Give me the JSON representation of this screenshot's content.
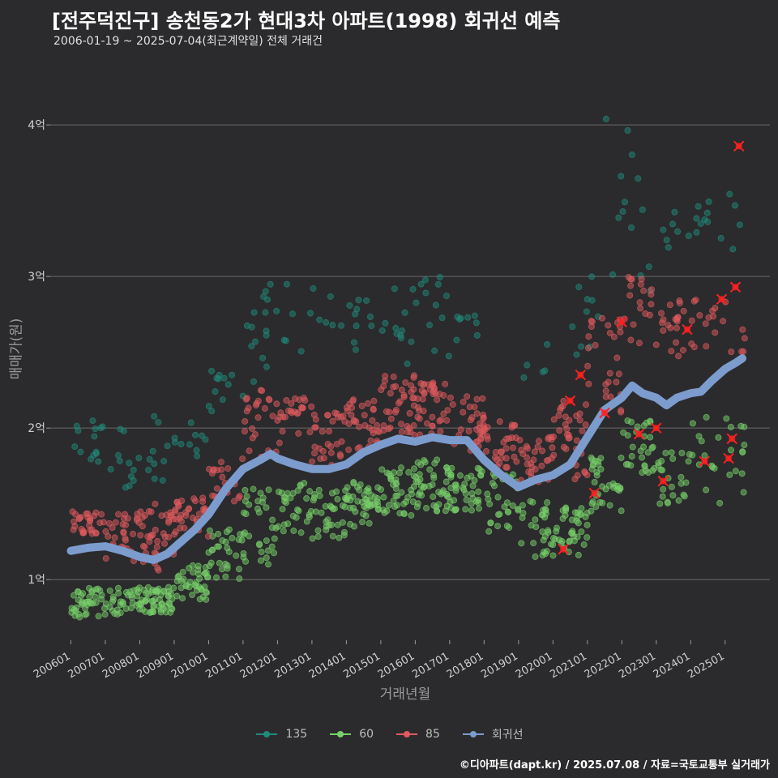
{
  "header": {
    "title": "[전주덕진구] 송천동2가 현대3차 아파트(1998) 회귀선 예측",
    "subtitle": "2006-01-19 ~ 2025-07-04(최근계약일) 전체 거래건"
  },
  "footer": {
    "credit": "©디아파트(dapt.kr) / 2025.07.08 / 자료=국토교통부 실거래가"
  },
  "chart_data": {
    "type": "scatter",
    "xlabel": "거래년월",
    "ylabel": "매매가(원)",
    "x_ticks": [
      "200601",
      "200701",
      "200801",
      "200901",
      "201001",
      "201101",
      "201201",
      "201301",
      "201401",
      "201501",
      "201601",
      "201701",
      "201801",
      "201901",
      "202001",
      "202101",
      "202201",
      "202301",
      "202401",
      "202501"
    ],
    "y_ticks": [
      {
        "value": 1,
        "label": "1억"
      },
      {
        "value": 2,
        "label": "2억"
      },
      {
        "value": 3,
        "label": "3억"
      },
      {
        "value": 4,
        "label": "4억"
      }
    ],
    "ylim": [
      0.6,
      4.45
    ],
    "xlim": [
      2005.4,
      2026.3
    ],
    "unit": "억원",
    "grid": "horizontal",
    "legend_position": "bottom",
    "colors": {
      "135": "#1f8a7a",
      "60": "#77d06a",
      "85": "#e05a5e",
      "회귀선": "#7c9cce"
    },
    "series": [
      {
        "name": "135",
        "color": "#1f8a7a",
        "bands": [
          {
            "x0": 2006.0,
            "x1": 2007.0,
            "lo": 1.7,
            "hi": 2.05,
            "n": 14
          },
          {
            "x0": 2007.0,
            "x1": 2008.0,
            "lo": 1.55,
            "hi": 2.05,
            "n": 12
          },
          {
            "x0": 2008.0,
            "x1": 2009.0,
            "lo": 1.65,
            "hi": 2.1,
            "n": 10
          },
          {
            "x0": 2009.0,
            "x1": 2010.0,
            "lo": 1.7,
            "hi": 2.05,
            "n": 10
          },
          {
            "x0": 2010.0,
            "x1": 2011.0,
            "lo": 2.0,
            "hi": 2.4,
            "n": 12
          },
          {
            "x0": 2011.0,
            "x1": 2012.0,
            "lo": 2.3,
            "hi": 2.95,
            "n": 16
          },
          {
            "x0": 2012.0,
            "x1": 2014.0,
            "lo": 2.5,
            "hi": 3.0,
            "n": 12
          },
          {
            "x0": 2014.0,
            "x1": 2015.0,
            "lo": 2.45,
            "hi": 2.85,
            "n": 10
          },
          {
            "x0": 2015.0,
            "x1": 2016.0,
            "lo": 2.4,
            "hi": 2.95,
            "n": 12
          },
          {
            "x0": 2016.0,
            "x1": 2017.0,
            "lo": 2.45,
            "hi": 3.0,
            "n": 12
          },
          {
            "x0": 2017.0,
            "x1": 2018.0,
            "lo": 2.55,
            "hi": 2.75,
            "n": 8
          },
          {
            "x0": 2019.0,
            "x1": 2020.0,
            "lo": 2.3,
            "hi": 2.6,
            "n": 5
          },
          {
            "x0": 2020.5,
            "x1": 2021.5,
            "lo": 2.45,
            "hi": 3.05,
            "n": 10
          },
          {
            "x0": 2021.5,
            "x1": 2022.5,
            "lo": 2.7,
            "hi": 4.05,
            "n": 10
          },
          {
            "x0": 2022.5,
            "x1": 2023.5,
            "lo": 2.9,
            "hi": 3.45,
            "n": 8
          },
          {
            "x0": 2023.5,
            "x1": 2024.5,
            "lo": 3.25,
            "hi": 3.5,
            "n": 10
          },
          {
            "x0": 2024.5,
            "x1": 2025.5,
            "lo": 3.15,
            "hi": 3.55,
            "n": 6
          }
        ]
      },
      {
        "name": "60",
        "color": "#77d06a",
        "bands": [
          {
            "x0": 2006.0,
            "x1": 2007.5,
            "lo": 0.75,
            "hi": 0.95,
            "n": 55
          },
          {
            "x0": 2007.5,
            "x1": 2009.0,
            "lo": 0.78,
            "hi": 0.95,
            "n": 70
          },
          {
            "x0": 2009.0,
            "x1": 2010.0,
            "lo": 0.85,
            "hi": 1.1,
            "n": 40
          },
          {
            "x0": 2010.0,
            "x1": 2011.0,
            "lo": 1.0,
            "hi": 1.35,
            "n": 30
          },
          {
            "x0": 2011.0,
            "x1": 2012.0,
            "lo": 1.1,
            "hi": 1.65,
            "n": 35
          },
          {
            "x0": 2012.0,
            "x1": 2013.0,
            "lo": 1.3,
            "hi": 1.65,
            "n": 30
          },
          {
            "x0": 2013.0,
            "x1": 2014.0,
            "lo": 1.25,
            "hi": 1.6,
            "n": 35
          },
          {
            "x0": 2014.0,
            "x1": 2015.0,
            "lo": 1.35,
            "hi": 1.65,
            "n": 45
          },
          {
            "x0": 2015.0,
            "x1": 2016.0,
            "lo": 1.4,
            "hi": 1.75,
            "n": 40
          },
          {
            "x0": 2016.0,
            "x1": 2017.0,
            "lo": 1.45,
            "hi": 1.8,
            "n": 45
          },
          {
            "x0": 2017.0,
            "x1": 2018.0,
            "lo": 1.45,
            "hi": 1.75,
            "n": 40
          },
          {
            "x0": 2018.0,
            "x1": 2019.0,
            "lo": 1.3,
            "hi": 1.7,
            "n": 30
          },
          {
            "x0": 2019.0,
            "x1": 2020.0,
            "lo": 1.15,
            "hi": 1.55,
            "n": 30
          },
          {
            "x0": 2020.0,
            "x1": 2021.0,
            "lo": 1.15,
            "hi": 1.5,
            "n": 40
          },
          {
            "x0": 2021.0,
            "x1": 2022.0,
            "lo": 1.45,
            "hi": 1.85,
            "n": 35
          },
          {
            "x0": 2022.0,
            "x1": 2023.0,
            "lo": 1.7,
            "hi": 2.05,
            "n": 30
          },
          {
            "x0": 2023.0,
            "x1": 2024.0,
            "lo": 1.5,
            "hi": 1.85,
            "n": 25
          },
          {
            "x0": 2024.0,
            "x1": 2025.6,
            "lo": 1.5,
            "hi": 2.1,
            "n": 25
          }
        ]
      },
      {
        "name": "85",
        "color": "#e05a5e",
        "bands": [
          {
            "x0": 2006.0,
            "x1": 2007.0,
            "lo": 1.3,
            "hi": 1.45,
            "n": 30
          },
          {
            "x0": 2007.0,
            "x1": 2008.0,
            "lo": 1.1,
            "hi": 1.45,
            "n": 30
          },
          {
            "x0": 2008.0,
            "x1": 2009.0,
            "lo": 1.05,
            "hi": 1.5,
            "n": 40
          },
          {
            "x0": 2009.0,
            "x1": 2010.0,
            "lo": 1.25,
            "hi": 1.55,
            "n": 35
          },
          {
            "x0": 2010.0,
            "x1": 2011.0,
            "lo": 1.5,
            "hi": 1.85,
            "n": 25
          },
          {
            "x0": 2011.0,
            "x1": 2012.0,
            "lo": 1.8,
            "hi": 2.25,
            "n": 25
          },
          {
            "x0": 2012.0,
            "x1": 2013.0,
            "lo": 1.9,
            "hi": 2.2,
            "n": 25
          },
          {
            "x0": 2013.0,
            "x1": 2014.0,
            "lo": 1.75,
            "hi": 2.1,
            "n": 30
          },
          {
            "x0": 2014.0,
            "x1": 2015.0,
            "lo": 1.85,
            "hi": 2.2,
            "n": 35
          },
          {
            "x0": 2015.0,
            "x1": 2016.0,
            "lo": 1.95,
            "hi": 2.35,
            "n": 40
          },
          {
            "x0": 2016.0,
            "x1": 2017.0,
            "lo": 1.9,
            "hi": 2.3,
            "n": 40
          },
          {
            "x0": 2017.0,
            "x1": 2018.0,
            "lo": 1.85,
            "hi": 2.25,
            "n": 35
          },
          {
            "x0": 2018.0,
            "x1": 2019.0,
            "lo": 1.7,
            "hi": 2.05,
            "n": 30
          },
          {
            "x0": 2019.0,
            "x1": 2020.0,
            "lo": 1.6,
            "hi": 1.95,
            "n": 30
          },
          {
            "x0": 2020.0,
            "x1": 2021.0,
            "lo": 1.65,
            "hi": 2.2,
            "n": 35
          },
          {
            "x0": 2021.0,
            "x1": 2022.0,
            "lo": 2.1,
            "hi": 2.75,
            "n": 30
          },
          {
            "x0": 2022.0,
            "x1": 2023.0,
            "lo": 2.45,
            "hi": 3.0,
            "n": 20
          },
          {
            "x0": 2023.0,
            "x1": 2024.0,
            "lo": 2.45,
            "hi": 2.85,
            "n": 20
          },
          {
            "x0": 2024.0,
            "x1": 2025.6,
            "lo": 2.5,
            "hi": 2.95,
            "n": 20
          }
        ]
      },
      {
        "name": "회귀선",
        "color": "#7c9cce",
        "x": [
          2006.0,
          2006.5,
          2007.0,
          2007.5,
          2008.0,
          2008.4,
          2008.8,
          2009.2,
          2009.6,
          2010.0,
          2010.5,
          2011.0,
          2011.5,
          2011.8,
          2012.0,
          2012.5,
          2013.0,
          2013.5,
          2014.0,
          2014.5,
          2015.0,
          2015.5,
          2016.0,
          2016.5,
          2017.0,
          2017.5,
          2018.0,
          2018.5,
          2019.0,
          2019.5,
          2020.0,
          2020.5,
          2021.0,
          2021.5,
          2022.0,
          2022.3,
          2022.6,
          2023.0,
          2023.3,
          2023.6,
          2024.0,
          2024.3,
          2024.6,
          2025.0,
          2025.3,
          2025.5
        ],
        "y": [
          1.19,
          1.21,
          1.22,
          1.19,
          1.15,
          1.13,
          1.17,
          1.25,
          1.33,
          1.43,
          1.6,
          1.73,
          1.79,
          1.83,
          1.8,
          1.76,
          1.73,
          1.73,
          1.76,
          1.84,
          1.89,
          1.93,
          1.91,
          1.94,
          1.92,
          1.92,
          1.79,
          1.69,
          1.61,
          1.66,
          1.69,
          1.76,
          1.94,
          2.12,
          2.2,
          2.28,
          2.23,
          2.2,
          2.15,
          2.2,
          2.23,
          2.24,
          2.31,
          2.39,
          2.43,
          2.46
        ]
      },
      {
        "name": "회귀선 예측",
        "color": "#ff2020",
        "x": [
          2020.3,
          2020.5,
          2020.8,
          2021.2,
          2021.5,
          2022.0,
          2022.5,
          2023.0,
          2023.2,
          2023.9,
          2024.4,
          2024.9,
          2025.1,
          2025.2,
          2025.3,
          2025.4
        ],
        "y": [
          1.2,
          2.18,
          2.35,
          1.57,
          2.1,
          2.7,
          1.96,
          2.0,
          1.65,
          2.65,
          1.78,
          2.85,
          1.8,
          1.93,
          2.93,
          3.86
        ]
      }
    ]
  }
}
